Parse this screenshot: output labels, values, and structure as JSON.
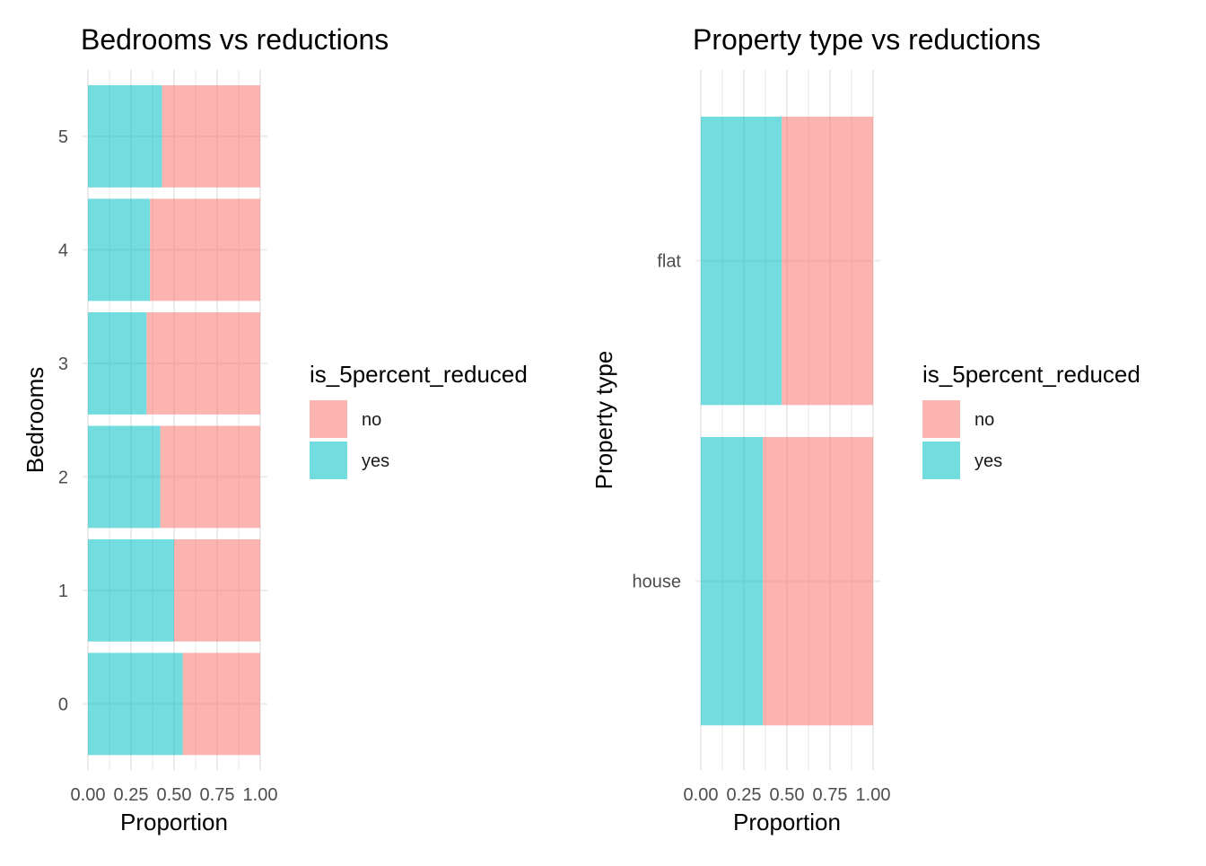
{
  "colors": {
    "no": "#F8766D",
    "yes": "#00BFC4",
    "bar_opacity": 0.55,
    "grid": "#ebebeb"
  },
  "legend": {
    "title": "is_5percent_reduced",
    "items": [
      {
        "label": "no",
        "color": "#F8766D"
      },
      {
        "label": "yes",
        "color": "#00BFC4"
      }
    ]
  },
  "chart_data": [
    {
      "type": "bar",
      "orientation": "horizontal",
      "stacked": "fill",
      "title": "Bedrooms vs reductions",
      "xlabel": "Proportion",
      "ylabel": "Bedrooms",
      "xlim": [
        0,
        1
      ],
      "x_ticks": [
        "0.00",
        "0.25",
        "0.50",
        "0.75",
        "1.00"
      ],
      "categories": [
        "0",
        "1",
        "2",
        "3",
        "4",
        "5"
      ],
      "series": [
        {
          "name": "yes",
          "values": [
            0.55,
            0.5,
            0.42,
            0.34,
            0.36,
            0.43
          ]
        },
        {
          "name": "no",
          "values": [
            0.45,
            0.5,
            0.58,
            0.66,
            0.64,
            0.57
          ]
        }
      ],
      "grid": true,
      "legend_position": "right"
    },
    {
      "type": "bar",
      "orientation": "horizontal",
      "stacked": "fill",
      "title": "Property type vs reductions",
      "xlabel": "Proportion",
      "ylabel": "Property type",
      "xlim": [
        0,
        1
      ],
      "x_ticks": [
        "0.00",
        "0.25",
        "0.50",
        "0.75",
        "1.00"
      ],
      "categories": [
        "house",
        "flat"
      ],
      "series": [
        {
          "name": "yes",
          "values": [
            0.36,
            0.47
          ]
        },
        {
          "name": "no",
          "values": [
            0.64,
            0.53
          ]
        }
      ],
      "grid": true,
      "legend_position": "right"
    }
  ]
}
